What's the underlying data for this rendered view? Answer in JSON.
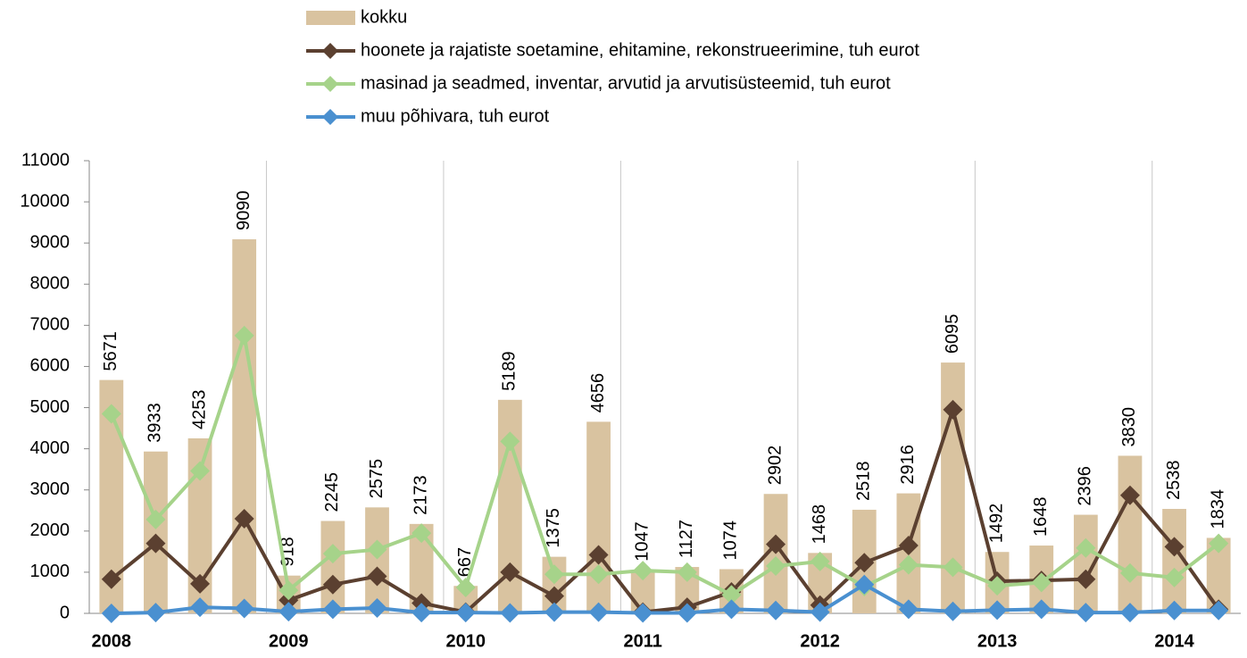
{
  "chart_data": {
    "type": "combo",
    "categories": [
      "2008",
      null,
      null,
      null,
      "2009",
      null,
      null,
      null,
      "2010",
      null,
      null,
      null,
      "2011",
      null,
      null,
      null,
      "2012",
      null,
      null,
      null,
      "2013",
      null,
      null,
      null,
      "2014",
      null
    ],
    "series": [
      {
        "name": "kokku",
        "type": "bar",
        "color": "#d9c3a0",
        "values": [
          5671,
          3933,
          4253,
          9090,
          918,
          2245,
          2575,
          2173,
          667,
          5189,
          1375,
          4656,
          1047,
          1127,
          1074,
          2902,
          1468,
          2518,
          2916,
          6095,
          1492,
          1648,
          2396,
          3830,
          2538,
          1834
        ]
      },
      {
        "name": "hoonete ja rajatiste soetamine, ehitamine, rekonstrueerimine, tuh eurot",
        "type": "line",
        "color": "#5b4030",
        "values": [
          830,
          1700,
          720,
          2300,
          320,
          700,
          900,
          250,
          30,
          1000,
          420,
          1420,
          30,
          150,
          520,
          1680,
          200,
          1230,
          1650,
          4950,
          780,
          800,
          830,
          2870,
          1620,
          100
        ]
      },
      {
        "name": "masinad ja seadmed, inventar, arvutid ja arvutisüsteemid, tuh eurot",
        "type": "line",
        "color": "#a6d38a",
        "values": [
          4850,
          2280,
          3460,
          6750,
          560,
          1450,
          1550,
          1950,
          630,
          4180,
          950,
          950,
          1040,
          1000,
          450,
          1150,
          1260,
          650,
          1180,
          1120,
          670,
          750,
          1590,
          980,
          870,
          1700
        ]
      },
      {
        "name": "muu põhivara, tuh eurot",
        "type": "line",
        "color": "#4a90d0",
        "values": [
          0,
          20,
          150,
          120,
          40,
          100,
          130,
          20,
          20,
          10,
          30,
          30,
          10,
          10,
          100,
          70,
          30,
          700,
          100,
          50,
          80,
          100,
          20,
          20,
          70,
          70
        ]
      }
    ],
    "ylim": [
      0,
      11000
    ],
    "yticks": [
      0,
      1000,
      2000,
      3000,
      4000,
      5000,
      6000,
      7000,
      8000,
      9000,
      10000,
      11000
    ],
    "grid": "x",
    "legend": "top"
  }
}
